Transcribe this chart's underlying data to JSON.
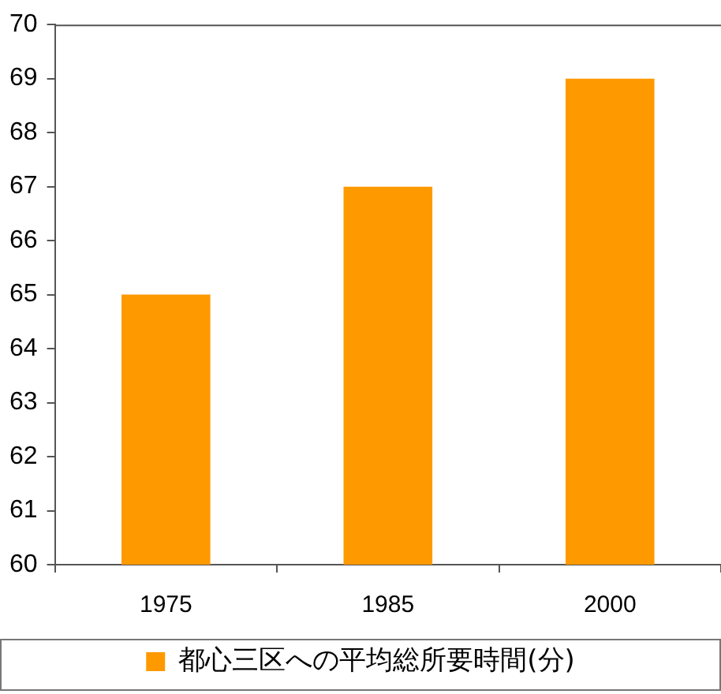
{
  "chart_data": {
    "type": "bar",
    "categories": [
      "1975",
      "1985",
      "2000"
    ],
    "series": [
      {
        "name": "都心三区への平均総所要時間(分)",
        "color": "#ff9900",
        "values": [
          65,
          67,
          69
        ]
      }
    ],
    "ylim": [
      60,
      70
    ],
    "yticks": [
      60,
      61,
      62,
      63,
      64,
      65,
      66,
      67,
      68,
      69,
      70
    ],
    "grid": false,
    "legend": "bottom"
  }
}
